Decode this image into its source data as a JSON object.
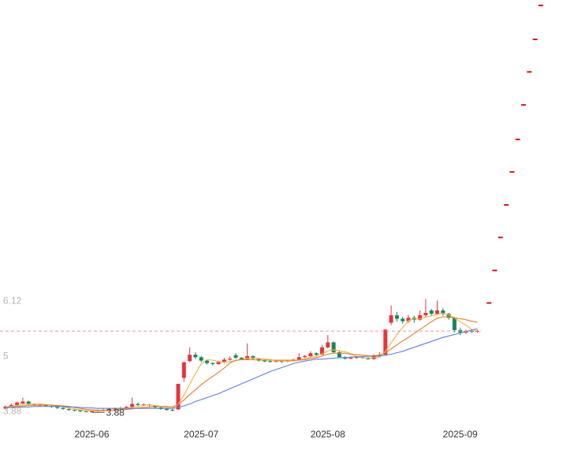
{
  "chart_data": {
    "type": "candlestick",
    "categories": [
      null,
      null,
      null,
      null,
      null,
      null,
      null,
      null,
      null,
      null,
      null,
      null,
      null,
      null,
      null,
      "2025-06",
      null,
      null,
      null,
      null,
      null,
      null,
      null,
      null,
      null,
      null,
      null,
      null,
      null,
      null,
      null,
      null,
      null,
      null,
      "2025-07",
      null,
      null,
      null,
      null,
      null,
      null,
      null,
      null,
      null,
      null,
      null,
      null,
      null,
      null,
      null,
      null,
      null,
      null,
      null,
      null,
      null,
      "2025-08",
      null,
      null,
      null,
      null,
      null,
      null,
      null,
      null,
      null,
      null,
      null,
      null,
      null,
      null,
      null,
      null,
      null,
      null,
      null,
      null,
      null,
      null,
      "2025-09",
      null,
      null,
      null,
      null,
      null,
      null,
      null,
      null,
      null,
      null,
      null,
      null,
      null,
      null
    ],
    "ohlc": [
      [
        3.96,
        4.02,
        3.94,
        4.0
      ],
      [
        4.0,
        4.06,
        3.99,
        4.03
      ],
      [
        4.03,
        4.1,
        4.01,
        4.08
      ],
      [
        4.06,
        4.18,
        4.04,
        4.1
      ],
      [
        4.1,
        4.12,
        4.02,
        4.04
      ],
      [
        4.04,
        4.06,
        4.0,
        4.02
      ],
      [
        4.02,
        4.05,
        4.0,
        4.03
      ],
      [
        4.03,
        4.04,
        3.99,
        4.01
      ],
      [
        4.01,
        4.02,
        3.97,
        3.99
      ],
      [
        3.99,
        4.0,
        3.95,
        3.97
      ],
      [
        3.97,
        3.98,
        3.93,
        3.95
      ],
      [
        3.95,
        3.96,
        3.91,
        3.93
      ],
      [
        3.93,
        3.94,
        3.9,
        3.92
      ],
      [
        3.92,
        3.93,
        3.89,
        3.9
      ],
      [
        3.9,
        3.91,
        3.89,
        3.89
      ],
      [
        3.89,
        3.92,
        3.88,
        3.9
      ],
      [
        3.9,
        3.94,
        3.89,
        3.92
      ],
      [
        3.92,
        3.95,
        3.91,
        3.93
      ],
      [
        3.93,
        3.97,
        3.92,
        3.95
      ],
      [
        3.95,
        3.98,
        3.93,
        3.96
      ],
      [
        3.96,
        3.99,
        3.94,
        3.97
      ],
      [
        3.97,
        4.01,
        3.96,
        3.99
      ],
      [
        3.99,
        4.18,
        3.98,
        4.05
      ],
      [
        4.05,
        4.08,
        4.01,
        4.03
      ],
      [
        4.03,
        4.06,
        4.01,
        4.04
      ],
      [
        4.04,
        4.05,
        4.0,
        4.02
      ],
      [
        4.02,
        4.03,
        3.96,
        3.98
      ],
      [
        3.98,
        3.99,
        3.93,
        3.95
      ],
      [
        3.95,
        3.96,
        3.91,
        3.93
      ],
      [
        3.93,
        3.95,
        3.9,
        3.92
      ],
      [
        3.94,
        4.46,
        3.93,
        4.46
      ],
      [
        4.58,
        4.9,
        4.5,
        4.9
      ],
      [
        4.92,
        5.2,
        4.9,
        5.05
      ],
      [
        5.05,
        5.1,
        4.96,
        5.0
      ],
      [
        5.0,
        5.02,
        4.9,
        4.93
      ],
      [
        4.93,
        4.95,
        4.85,
        4.88
      ],
      [
        4.88,
        4.9,
        4.83,
        4.86
      ],
      [
        4.86,
        4.93,
        4.85,
        4.9
      ],
      [
        4.9,
        4.99,
        4.88,
        4.95
      ],
      [
        4.95,
        5.02,
        4.93,
        4.97
      ],
      [
        5.04,
        5.08,
        4.97,
        4.99
      ],
      [
        4.99,
        5.0,
        4.94,
        4.96
      ],
      [
        4.96,
        5.28,
        4.95,
        5.02
      ],
      [
        5.02,
        5.04,
        4.95,
        4.97
      ],
      [
        4.97,
        4.98,
        4.91,
        4.93
      ],
      [
        4.93,
        4.95,
        4.9,
        4.92
      ],
      [
        4.92,
        4.93,
        4.89,
        4.91
      ],
      [
        4.91,
        4.94,
        4.9,
        4.92
      ],
      [
        4.92,
        4.93,
        4.88,
        4.91
      ],
      [
        4.91,
        4.95,
        4.9,
        4.93
      ],
      [
        4.93,
        4.97,
        4.91,
        4.95
      ],
      [
        4.95,
        5.08,
        4.94,
        5.0
      ],
      [
        5.0,
        5.05,
        4.98,
        5.02
      ],
      [
        5.02,
        5.12,
        5.0,
        5.08
      ],
      [
        5.08,
        5.1,
        5.02,
        5.05
      ],
      [
        5.05,
        5.25,
        5.04,
        5.2
      ],
      [
        5.2,
        5.45,
        5.18,
        5.3
      ],
      [
        5.3,
        5.32,
        5.08,
        5.1
      ],
      [
        5.1,
        5.12,
        4.98,
        5.0
      ],
      [
        5.0,
        5.02,
        4.95,
        4.97
      ],
      [
        4.97,
        5.01,
        4.96,
        4.99
      ],
      [
        4.99,
        5.02,
        4.97,
        5.0
      ],
      [
        5.0,
        5.01,
        4.97,
        4.99
      ],
      [
        4.99,
        5.0,
        4.95,
        4.96
      ],
      [
        4.96,
        5.06,
        4.95,
        5.02
      ],
      [
        5.02,
        5.1,
        5.0,
        5.05
      ],
      [
        5.05,
        5.56,
        5.04,
        5.56
      ],
      [
        5.7,
        6.05,
        5.65,
        5.85
      ],
      [
        5.85,
        5.92,
        5.72,
        5.78
      ],
      [
        5.78,
        5.82,
        5.68,
        5.73
      ],
      [
        5.73,
        5.86,
        5.7,
        5.8
      ],
      [
        5.8,
        5.84,
        5.7,
        5.76
      ],
      [
        5.76,
        5.95,
        5.74,
        5.85
      ],
      [
        5.85,
        6.18,
        5.82,
        5.9
      ],
      [
        5.95,
        5.98,
        5.85,
        5.88
      ],
      [
        5.88,
        6.15,
        5.86,
        5.95
      ],
      [
        5.95,
        6.0,
        5.84,
        5.88
      ],
      [
        5.88,
        5.9,
        5.76,
        5.8
      ],
      [
        5.8,
        5.82,
        5.5,
        5.55
      ],
      [
        5.55,
        5.6,
        5.45,
        5.5
      ],
      [
        5.5,
        5.56,
        5.47,
        5.53
      ],
      [
        5.53,
        5.56,
        5.49,
        5.52
      ],
      [
        5.52,
        5.56,
        5.5,
        5.53
      ],
      null,
      null,
      null,
      null,
      null,
      null,
      null,
      null,
      null,
      null,
      null
    ],
    "up_color": "#e5343d",
    "down_color": "#17875a",
    "series": [
      {
        "color": "#f5b041",
        "values": [
          3.99,
          4.0,
          4.02,
          4.04,
          4.05,
          4.05,
          4.05,
          4.04,
          4.02,
          4.01,
          3.99,
          3.97,
          3.95,
          3.93,
          3.92,
          3.91,
          3.91,
          3.91,
          3.92,
          3.93,
          3.95,
          3.96,
          3.98,
          4.0,
          4.02,
          4.03,
          4.02,
          4.0,
          3.98,
          3.96,
          4.05,
          4.23,
          4.45,
          4.67,
          4.87,
          4.95,
          4.94,
          4.91,
          4.9,
          4.91,
          4.93,
          4.95,
          4.98,
          4.99,
          4.97,
          4.96,
          4.95,
          4.93,
          4.92,
          4.92,
          4.92,
          4.94,
          4.96,
          5.0,
          5.02,
          5.07,
          5.13,
          5.15,
          5.13,
          5.11,
          5.07,
          5.01,
          4.99,
          4.98,
          4.99,
          5.0,
          5.12,
          5.29,
          5.46,
          5.6,
          5.74,
          5.78,
          5.78,
          5.81,
          5.84,
          5.87,
          5.89,
          5.86,
          5.79,
          5.72,
          5.65,
          5.56,
          5.53,
          null,
          null,
          null,
          null,
          null,
          null,
          null,
          null,
          null,
          null,
          null
        ]
      },
      {
        "color": "#e67e22",
        "values": [
          3.98,
          3.99,
          4.0,
          4.01,
          4.02,
          4.03,
          4.03,
          4.03,
          4.03,
          4.02,
          4.01,
          4.0,
          3.98,
          3.96,
          3.94,
          3.93,
          3.92,
          3.92,
          3.92,
          3.92,
          3.93,
          3.94,
          3.95,
          3.97,
          3.98,
          3.99,
          4.0,
          4.0,
          4.0,
          3.99,
          4.04,
          4.13,
          4.24,
          4.34,
          4.44,
          4.53,
          4.61,
          4.69,
          4.78,
          4.88,
          4.94,
          4.95,
          4.95,
          4.95,
          4.94,
          4.94,
          4.94,
          4.94,
          4.94,
          4.94,
          4.94,
          4.94,
          4.95,
          4.97,
          4.99,
          5.02,
          5.06,
          5.08,
          5.08,
          5.08,
          5.06,
          5.05,
          5.04,
          5.03,
          5.03,
          5.04,
          5.09,
          5.17,
          5.25,
          5.33,
          5.4,
          5.48,
          5.56,
          5.64,
          5.72,
          5.79,
          5.82,
          5.82,
          5.8,
          5.78,
          5.76,
          5.73,
          5.71,
          null,
          null,
          null,
          null,
          null,
          null,
          null,
          null,
          null,
          null,
          null
        ]
      },
      {
        "color": "#5b7fe0",
        "values": [
          3.97,
          3.98,
          3.98,
          3.99,
          3.99,
          4.0,
          4.0,
          4.0,
          4.0,
          4.0,
          4.0,
          3.99,
          3.99,
          3.98,
          3.97,
          3.97,
          3.96,
          3.96,
          3.96,
          3.96,
          3.96,
          3.96,
          3.96,
          3.96,
          3.96,
          3.96,
          3.96,
          3.96,
          3.96,
          3.96,
          3.98,
          4.01,
          4.05,
          4.1,
          4.14,
          4.18,
          4.22,
          4.26,
          4.31,
          4.36,
          4.41,
          4.46,
          4.51,
          4.56,
          4.61,
          4.66,
          4.71,
          4.75,
          4.79,
          4.83,
          4.87,
          4.9,
          4.92,
          4.94,
          4.96,
          4.96,
          4.97,
          4.98,
          4.99,
          4.99,
          5.0,
          5.01,
          5.01,
          5.02,
          5.02,
          5.02,
          5.04,
          5.06,
          5.09,
          5.12,
          5.16,
          5.2,
          5.24,
          5.28,
          5.32,
          5.36,
          5.4,
          5.43,
          5.46,
          5.49,
          5.52,
          5.55,
          5.58,
          null,
          null,
          null,
          null,
          null,
          null,
          null,
          null,
          null,
          null,
          null
        ]
      }
    ],
    "projection": {
      "color": "#d9121e",
      "values": [
        null,
        null,
        null,
        null,
        null,
        null,
        null,
        null,
        null,
        null,
        null,
        null,
        null,
        null,
        null,
        null,
        null,
        null,
        null,
        null,
        null,
        null,
        null,
        null,
        null,
        null,
        null,
        null,
        null,
        null,
        null,
        null,
        null,
        null,
        null,
        null,
        null,
        null,
        null,
        null,
        null,
        null,
        null,
        null,
        null,
        null,
        null,
        null,
        null,
        null,
        null,
        null,
        null,
        null,
        null,
        null,
        null,
        null,
        null,
        null,
        null,
        null,
        null,
        null,
        null,
        null,
        null,
        null,
        null,
        null,
        null,
        null,
        null,
        null,
        null,
        null,
        null,
        null,
        null,
        null,
        null,
        null,
        null,
        null,
        6.1,
        6.76,
        7.43,
        8.09,
        8.76,
        9.42,
        10.12,
        10.79,
        11.45,
        12.14
      ]
    },
    "price_line_color": "#e79a9a",
    "ylim": [
      3.66,
      12.25
    ],
    "yticks": [
      3.88,
      5.0,
      6.12
    ]
  }
}
